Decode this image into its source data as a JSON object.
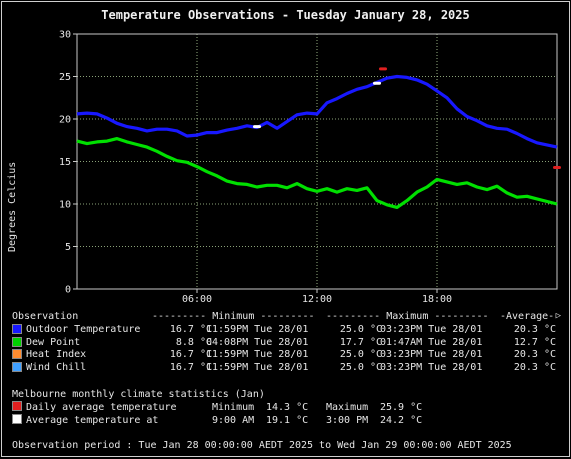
{
  "title": "Temperature Observations - Tuesday January 28, 2025",
  "chart_data": {
    "type": "line",
    "title": "Temperature Observations - Tuesday January 28, 2025",
    "ylabel": "Degrees Celcius",
    "xlabel": "",
    "ylim": [
      0,
      30
    ],
    "xlim_hours": [
      0,
      24
    ],
    "yticks": [
      "0",
      "5",
      "10",
      "15",
      "20",
      "25",
      "30"
    ],
    "xticks": [
      {
        "label": "06:00",
        "hour": 6
      },
      {
        "label": "12:00",
        "hour": 12
      },
      {
        "label": "18:00",
        "hour": 18
      }
    ],
    "grid": true,
    "series": [
      {
        "name": "Outdoor Temperature",
        "color": "#1818ff",
        "points": [
          [
            0,
            20.6
          ],
          [
            0.5,
            20.7
          ],
          [
            1,
            20.6
          ],
          [
            1.5,
            20.1
          ],
          [
            2,
            19.5
          ],
          [
            2.5,
            19.1
          ],
          [
            3,
            18.9
          ],
          [
            3.5,
            18.6
          ],
          [
            4,
            18.8
          ],
          [
            4.5,
            18.8
          ],
          [
            5,
            18.6
          ],
          [
            5.5,
            18.0
          ],
          [
            6,
            18.1
          ],
          [
            6.5,
            18.4
          ],
          [
            7,
            18.4
          ],
          [
            7.5,
            18.7
          ],
          [
            8,
            18.9
          ],
          [
            8.5,
            19.2
          ],
          [
            9,
            19.0
          ],
          [
            9.5,
            19.6
          ],
          [
            10,
            18.9
          ],
          [
            10.5,
            19.7
          ],
          [
            11,
            20.5
          ],
          [
            11.5,
            20.7
          ],
          [
            12,
            20.6
          ],
          [
            12.5,
            21.9
          ],
          [
            13,
            22.4
          ],
          [
            13.5,
            23.0
          ],
          [
            14,
            23.5
          ],
          [
            14.5,
            23.8
          ],
          [
            15,
            24.3
          ],
          [
            15.5,
            24.8
          ],
          [
            16,
            25.0
          ],
          [
            16.5,
            24.9
          ],
          [
            17,
            24.6
          ],
          [
            17.5,
            24.1
          ],
          [
            18,
            23.3
          ],
          [
            18.5,
            22.5
          ],
          [
            19,
            21.2
          ],
          [
            19.5,
            20.3
          ],
          [
            20,
            19.8
          ],
          [
            20.5,
            19.2
          ],
          [
            21,
            18.9
          ],
          [
            21.5,
            18.8
          ],
          [
            22,
            18.3
          ],
          [
            22.5,
            17.7
          ],
          [
            23,
            17.2
          ],
          [
            24,
            16.7
          ]
        ]
      },
      {
        "name": "Dew Point",
        "color": "#00e000",
        "points": [
          [
            0,
            17.4
          ],
          [
            0.5,
            17.1
          ],
          [
            1,
            17.3
          ],
          [
            1.5,
            17.4
          ],
          [
            2,
            17.7
          ],
          [
            2.5,
            17.3
          ],
          [
            3,
            17.0
          ],
          [
            3.5,
            16.7
          ],
          [
            4,
            16.2
          ],
          [
            4.5,
            15.6
          ],
          [
            5,
            15.1
          ],
          [
            5.5,
            14.9
          ],
          [
            6,
            14.4
          ],
          [
            6.5,
            13.8
          ],
          [
            7,
            13.3
          ],
          [
            7.5,
            12.7
          ],
          [
            8,
            12.4
          ],
          [
            8.5,
            12.3
          ],
          [
            9,
            12.0
          ],
          [
            9.5,
            12.2
          ],
          [
            10,
            12.2
          ],
          [
            10.5,
            11.9
          ],
          [
            11,
            12.4
          ],
          [
            11.5,
            11.8
          ],
          [
            12,
            11.5
          ],
          [
            12.5,
            11.8
          ],
          [
            13,
            11.4
          ],
          [
            13.5,
            11.8
          ],
          [
            14,
            11.6
          ],
          [
            14.5,
            11.9
          ],
          [
            15,
            10.4
          ],
          [
            15.5,
            9.9
          ],
          [
            16,
            9.6
          ],
          [
            16.5,
            10.4
          ],
          [
            17,
            11.4
          ],
          [
            17.5,
            12.0
          ],
          [
            18,
            12.9
          ],
          [
            18.5,
            12.6
          ],
          [
            19,
            12.3
          ],
          [
            19.5,
            12.5
          ],
          [
            20,
            12.0
          ],
          [
            20.5,
            11.7
          ],
          [
            21,
            12.1
          ],
          [
            21.5,
            11.3
          ],
          [
            22,
            10.8
          ],
          [
            22.5,
            10.9
          ],
          [
            23,
            10.6
          ],
          [
            24,
            10.0
          ]
        ]
      }
    ],
    "markers": [
      {
        "label": "Daily average temperature maximum",
        "hour": 15.3,
        "value": 25.9,
        "color": "#e02020"
      },
      {
        "label": "Daily average temperature minimum",
        "hour": 24.0,
        "value": 14.3,
        "color": "#e02020"
      },
      {
        "label": "Average temperature at 9:00 AM",
        "hour": 9.0,
        "value": 19.1,
        "color": "#ffffff"
      },
      {
        "label": "Average temperature at 3:00 PM",
        "hour": 15.0,
        "value": 24.2,
        "color": "#ffffff"
      }
    ]
  },
  "stats": {
    "header": {
      "observation": "Observation",
      "minimum": "--------- Minimum ---------",
      "maximum": "--------- Maximum ---------",
      "average": "-Average-"
    },
    "rows": [
      {
        "name": "Outdoor Temperature",
        "color": "#1818ff",
        "min": "16.7 °C",
        "min_time": "11:59PM Tue 28/01",
        "max": "25.0 °C",
        "max_time": "03:23PM Tue 28/01",
        "avg": "20.3 °C"
      },
      {
        "name": "Dew Point",
        "color": "#00d000",
        "min": "8.8 °C",
        "min_time": "04:08PM Tue 28/01",
        "max": "17.7 °C",
        "max_time": "01:47AM Tue 28/01",
        "avg": "12.7 °C"
      },
      {
        "name": "Heat Index",
        "color": "#ff8c30",
        "min": "16.7 °C",
        "min_time": "11:59PM Tue 28/01",
        "max": "25.0 °C",
        "max_time": "03:23PM Tue 28/01",
        "avg": "20.3 °C"
      },
      {
        "name": "Wind Chill",
        "color": "#40a0ff",
        "min": "16.7 °C",
        "min_time": "11:59PM Tue 28/01",
        "max": "25.0 °C",
        "max_time": "03:23PM Tue 28/01",
        "avg": "20.3 °C"
      }
    ]
  },
  "monthly": {
    "heading": "Melbourne monthly climate statistics (Jan)",
    "rows": [
      {
        "label": "Daily average temperature",
        "color": "#e02020",
        "c1_label": "Minimum",
        "c1_value": "14.3 °C",
        "c2_label": "Maximum",
        "c2_value": "25.9 °C"
      },
      {
        "label": "Average temperature at",
        "color": "#ffffff",
        "c1_label": "9:00 AM",
        "c1_value": "19.1 °C",
        "c2_label": "3:00 PM",
        "c2_value": "24.2 °C"
      }
    ]
  },
  "period": "Observation period : Tue Jan 28 00:00:00 AEDT 2025 to Wed Jan 29 00:00:00 AEDT 2025"
}
